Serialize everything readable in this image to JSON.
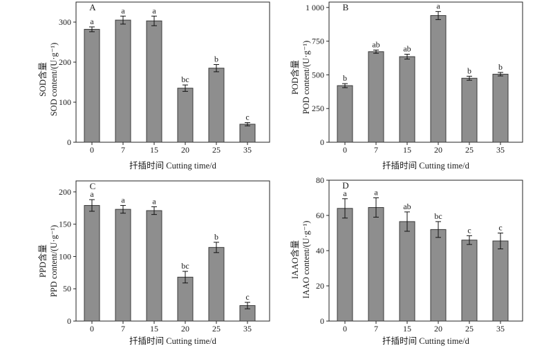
{
  "chart_data": [
    {
      "type": "bar",
      "panel": "A",
      "categories": [
        "0",
        "7",
        "15",
        "20",
        "25",
        "35"
      ],
      "values": [
        282,
        305,
        303,
        135,
        185,
        45
      ],
      "errors": [
        6,
        10,
        12,
        8,
        9,
        4
      ],
      "significance": [
        "a",
        "a",
        "a",
        "bc",
        "b",
        "c"
      ],
      "xlabel": "扦插时间 Cutting time/d",
      "ylabel_cn": "SOD含量",
      "ylabel": "SOD content/(U·g⁻¹)",
      "ylim": [
        0,
        350
      ],
      "yticks": [
        0,
        100,
        200,
        300
      ],
      "ytick_labels": [
        "0",
        "100",
        "200",
        "300"
      ],
      "grid": false,
      "bar_color": "#8e8e8e"
    },
    {
      "type": "bar",
      "panel": "B",
      "categories": [
        "0",
        "7",
        "15",
        "20",
        "25",
        "35"
      ],
      "values": [
        420,
        672,
        635,
        940,
        475,
        505
      ],
      "errors": [
        15,
        12,
        18,
        30,
        15,
        13
      ],
      "significance": [
        "b",
        "ab",
        "ab",
        "a",
        "b",
        "b"
      ],
      "xlabel": "扦插时间 Cutting time/d",
      "ylabel_cn": "POD含量",
      "ylabel": "POD content/(U·g⁻¹)",
      "ylim": [
        0,
        1040
      ],
      "yticks": [
        0,
        250,
        500,
        750,
        1000
      ],
      "ytick_labels": [
        "0",
        "250",
        "500",
        "750",
        "1 000"
      ],
      "grid": false,
      "bar_color": "#8e8e8e"
    },
    {
      "type": "bar",
      "panel": "C",
      "categories": [
        "0",
        "7",
        "15",
        "20",
        "25",
        "35"
      ],
      "values": [
        179,
        173,
        171,
        68,
        114,
        24
      ],
      "errors": [
        9,
        6,
        6,
        9,
        8,
        5
      ],
      "significance": [
        "a",
        "a",
        "a",
        "bc",
        "b",
        "c"
      ],
      "xlabel": "扦插时间 Cutting time/d",
      "ylabel_cn": "PPD含量",
      "ylabel": "PPD content/(U·g⁻¹)",
      "ylim": [
        0,
        217
      ],
      "yticks": [
        0,
        50,
        100,
        150,
        200
      ],
      "ytick_labels": [
        "0",
        "50",
        "100",
        "150",
        "200"
      ],
      "grid": false,
      "bar_color": "#8e8e8e"
    },
    {
      "type": "bar",
      "panel": "D",
      "categories": [
        "0",
        "7",
        "15",
        "20",
        "25",
        "35"
      ],
      "values": [
        64,
        64.5,
        56.5,
        52,
        46,
        45.5
      ],
      "errors": [
        5.5,
        5.5,
        5.5,
        4.5,
        2.5,
        4.5
      ],
      "significance": [
        "a",
        "a",
        "ab",
        "bc",
        "c",
        "c"
      ],
      "xlabel": "扦插时间 Cutting time/d",
      "ylabel_cn": "IAAO含量",
      "ylabel": "IAAO content/(U·g⁻¹)",
      "ylim": [
        0,
        80
      ],
      "yticks": [
        0,
        20,
        40,
        60,
        80
      ],
      "ytick_labels": [
        "0",
        "20",
        "40",
        "60",
        "80"
      ],
      "grid": false,
      "bar_color": "#8e8e8e"
    }
  ]
}
